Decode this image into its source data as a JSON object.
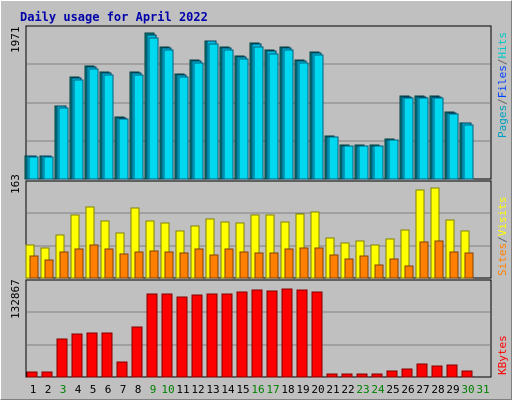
{
  "colors": {
    "background": "#c0c0c0",
    "title": "#0000aa",
    "hits": "#00c8c8",
    "hits_fill": "#00d8f0",
    "files": "#0040ff",
    "pages": "#00a0c0",
    "visits": "#ffff00",
    "sites": "#ff8000",
    "kbytes": "#ff0000",
    "weekend_day": "#008000",
    "weekday": "#000000",
    "divider_ltr": "#666666"
  },
  "chart_data": [
    {
      "type": "bar",
      "title": "Daily usage for April 2022",
      "panel": "hits-files-pages",
      "ymax_label": "1971",
      "ylim": [
        0,
        1971
      ],
      "legend_placement": "right",
      "categories": [
        "1",
        "2",
        "3",
        "4",
        "5",
        "6",
        "7",
        "8",
        "9",
        "10",
        "11",
        "12",
        "13",
        "14",
        "15",
        "16",
        "17",
        "18",
        "19",
        "20",
        "21",
        "22",
        "23",
        "24",
        "25",
        "26",
        "27",
        "28",
        "29",
        "30",
        "31"
      ],
      "series": [
        {
          "name": "Hits",
          "values": [
            305,
            305,
            970,
            1345,
            1490,
            1410,
            815,
            1410,
            1925,
            1745,
            1390,
            1575,
            1830,
            1745,
            1630,
            1795,
            1700,
            1745,
            1575,
            1680,
            570,
            450,
            450,
            450,
            530,
            1095,
            1095,
            1095,
            880,
            745,
            0
          ]
        },
        {
          "name": "Files",
          "values": [
            305,
            305,
            960,
            1335,
            1480,
            1400,
            805,
            1400,
            1910,
            1735,
            1380,
            1565,
            1820,
            1735,
            1620,
            1785,
            1690,
            1735,
            1565,
            1670,
            560,
            440,
            440,
            440,
            520,
            1085,
            1085,
            1085,
            870,
            735,
            0
          ]
        },
        {
          "name": "Pages",
          "values": [
            290,
            290,
            940,
            1310,
            1450,
            1370,
            790,
            1370,
            1870,
            1700,
            1350,
            1540,
            1780,
            1700,
            1590,
            1750,
            1660,
            1700,
            1540,
            1640,
            550,
            430,
            430,
            430,
            510,
            1070,
            1070,
            1070,
            860,
            720,
            0
          ]
        }
      ]
    },
    {
      "type": "bar",
      "panel": "visits-sites",
      "ymax_label": "163",
      "ylim": [
        0,
        163
      ],
      "legend_placement": "right",
      "categories": [
        "1",
        "2",
        "3",
        "4",
        "5",
        "6",
        "7",
        "8",
        "9",
        "10",
        "11",
        "12",
        "13",
        "14",
        "15",
        "16",
        "17",
        "18",
        "19",
        "20",
        "21",
        "22",
        "23",
        "24",
        "25",
        "26",
        "27",
        "28",
        "29",
        "30",
        "31"
      ],
      "series": [
        {
          "name": "Visits",
          "values": [
            58,
            53,
            75,
            110,
            124,
            100,
            79,
            123,
            100,
            97,
            82,
            92,
            104,
            98,
            97,
            111,
            111,
            98,
            112,
            116,
            70,
            62,
            65,
            57,
            68,
            84,
            155,
            158,
            101,
            83,
            0
          ]
        },
        {
          "name": "Sites",
          "values": [
            38,
            32,
            46,
            50,
            58,
            50,
            42,
            46,
            47,
            45,
            43,
            50,
            40,
            51,
            45,
            43,
            43,
            50,
            53,
            53,
            41,
            33,
            38,
            22,
            33,
            21,
            63,
            64,
            45,
            43,
            0
          ]
        }
      ]
    },
    {
      "type": "bar",
      "panel": "kbytes",
      "ymax_label": "132867",
      "ylim": [
        0,
        132867
      ],
      "legend_placement": "right",
      "categories": [
        "1",
        "2",
        "3",
        "4",
        "5",
        "6",
        "7",
        "8",
        "9",
        "10",
        "11",
        "12",
        "13",
        "14",
        "15",
        "16",
        "17",
        "18",
        "19",
        "20",
        "21",
        "22",
        "23",
        "24",
        "25",
        "26",
        "27",
        "28",
        "29",
        "30",
        "31"
      ],
      "series": [
        {
          "name": "KBytes",
          "values": [
            7000,
            7000,
            54000,
            61000,
            63000,
            63000,
            21000,
            72000,
            118000,
            118000,
            115000,
            117000,
            119000,
            119000,
            121000,
            125000,
            123000,
            126000,
            125000,
            121000,
            5000,
            5000,
            5000,
            5000,
            8000,
            11000,
            18000,
            16000,
            17000,
            9000,
            0
          ]
        }
      ]
    }
  ],
  "x_axis": {
    "days": [
      "1",
      "2",
      "3",
      "4",
      "5",
      "6",
      "7",
      "8",
      "9",
      "10",
      "11",
      "12",
      "13",
      "14",
      "15",
      "16",
      "17",
      "18",
      "19",
      "20",
      "21",
      "22",
      "23",
      "24",
      "25",
      "26",
      "27",
      "28",
      "29",
      "30",
      "31"
    ],
    "weekend_days": [
      "3",
      "9",
      "10",
      "16",
      "17",
      "23",
      "24",
      "30",
      "31"
    ]
  },
  "legend": {
    "hits_files_pages": [
      {
        "text": "Pages",
        "color": "#00a0c0"
      },
      {
        "text": "/",
        "color": "#666666"
      },
      {
        "text": "Files",
        "color": "#0040ff"
      },
      {
        "text": "/",
        "color": "#666666"
      },
      {
        "text": "Hits",
        "color": "#00c8c8"
      }
    ],
    "visits_sites": [
      {
        "text": "Sites",
        "color": "#ff8000"
      },
      {
        "text": "/",
        "color": "#666666"
      },
      {
        "text": "Visits",
        "color": "#ffff00"
      }
    ],
    "kbytes": [
      {
        "text": "KBytes",
        "color": "#ff0000"
      }
    ]
  }
}
